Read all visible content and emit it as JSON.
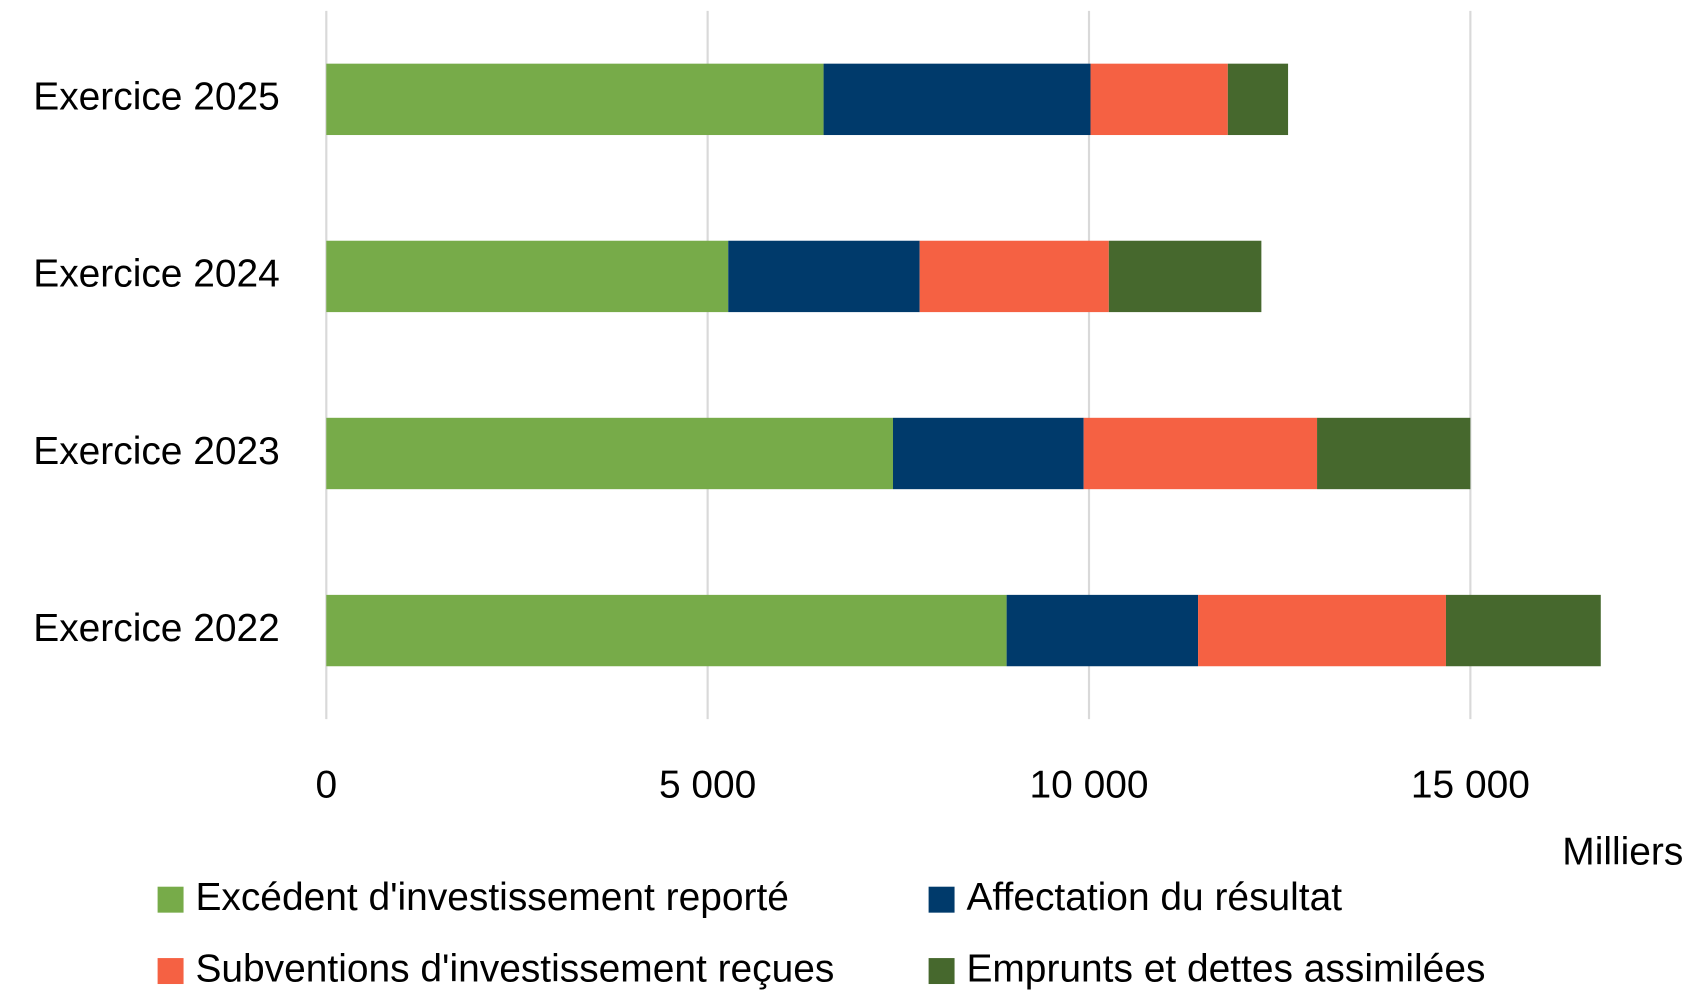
{
  "chart_data": {
    "type": "bar",
    "orientation": "horizontal",
    "stacked": true,
    "categories": [
      "Exercice 2022",
      "Exercice 2023",
      "Exercice 2024",
      "Exercice 2025"
    ],
    "series": [
      {
        "name": "Excédent d'investissement reporté",
        "color": "#77ab49",
        "values": [
          8920,
          7430,
          5270,
          6520
        ]
      },
      {
        "name": "Affectation du résultat",
        "color": "#003a6b",
        "values": [
          2510,
          2500,
          2510,
          3500
        ]
      },
      {
        "name": "Subventions d'investissement reçues",
        "color": "#f56143",
        "values": [
          3250,
          3060,
          2480,
          1800
        ]
      },
      {
        "name": "Emprunts et dettes assimilées",
        "color": "#46682d",
        "values": [
          2030,
          2010,
          2000,
          790
        ]
      }
    ],
    "xlim": [
      0,
      17500
    ],
    "xticks": [
      0,
      {
        "value": 5000,
        "label": "5 000"
      },
      {
        "value": 10000,
        "label": "10 000"
      },
      {
        "value": 15000,
        "label": "15 000"
      }
    ],
    "x_unit_label": "Milliers",
    "grid": true
  }
}
